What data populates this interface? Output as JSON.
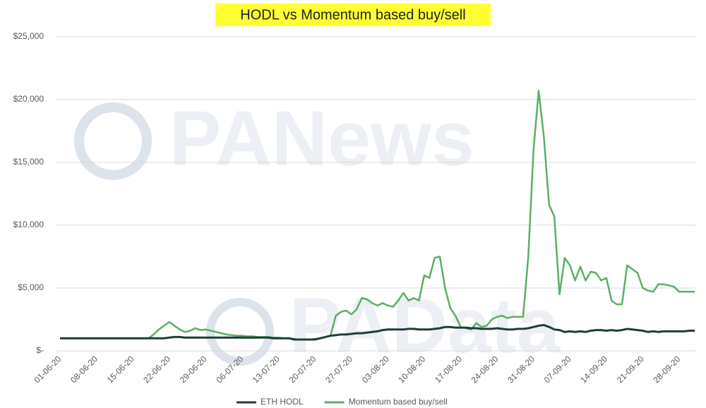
{
  "chart_data": {
    "type": "line",
    "title": "HODL vs Momentum based buy/sell",
    "watermarks": [
      "PANews",
      "PAData"
    ],
    "categories": [
      "01-06-20",
      null,
      null,
      null,
      null,
      null,
      null,
      "08-06-20",
      null,
      null,
      null,
      null,
      null,
      null,
      "15-06-20",
      null,
      null,
      null,
      null,
      null,
      null,
      "22-06-20",
      null,
      null,
      null,
      null,
      null,
      null,
      "29-06-20",
      null,
      null,
      null,
      null,
      null,
      null,
      "06-07-20",
      null,
      null,
      null,
      null,
      null,
      null,
      "13-07-20",
      null,
      null,
      null,
      null,
      null,
      null,
      "20-07-20",
      null,
      null,
      null,
      null,
      null,
      null,
      "27-07-20",
      null,
      null,
      null,
      null,
      null,
      null,
      "03-08-20",
      null,
      null,
      null,
      null,
      null,
      null,
      "10-08-20",
      null,
      null,
      null,
      null,
      null,
      null,
      "17-08-20",
      null,
      null,
      null,
      null,
      null,
      null,
      "24-08-20",
      null,
      null,
      null,
      null,
      null,
      null,
      "31-08-20",
      null,
      null,
      null,
      null,
      null,
      null,
      "07-09-20",
      null,
      null,
      null,
      null,
      null,
      null,
      "14-09-20",
      null,
      null,
      null,
      null,
      null,
      null,
      "21-09-20",
      null,
      null,
      null,
      null,
      null,
      null,
      "28-09-20",
      null,
      null,
      null
    ],
    "series": [
      {
        "name": "ETH HODL",
        "color": "#1f3d3b",
        "values": [
          1000,
          1000,
          1000,
          1000,
          1000,
          1000,
          1000,
          1000,
          1000,
          1000,
          1000,
          1000,
          1000,
          1000,
          1000,
          1000,
          1000,
          1000,
          1000,
          1000,
          1000,
          1050,
          1100,
          1100,
          1050,
          1050,
          1050,
          1050,
          1050,
          1050,
          1050,
          1050,
          1050,
          1050,
          1050,
          1050,
          1050,
          1050,
          1050,
          1050,
          1050,
          1000,
          1000,
          1000,
          1000,
          900,
          900,
          900,
          900,
          900,
          1000,
          1100,
          1200,
          1250,
          1300,
          1300,
          1350,
          1400,
          1400,
          1450,
          1500,
          1550,
          1650,
          1700,
          1700,
          1700,
          1700,
          1750,
          1750,
          1700,
          1700,
          1700,
          1750,
          1800,
          1900,
          1900,
          1850,
          1850,
          1850,
          1800,
          1800,
          1750,
          1750,
          1750,
          1800,
          1750,
          1700,
          1700,
          1750,
          1750,
          1800,
          1900,
          2000,
          2050,
          1900,
          1700,
          1650,
          1500,
          1550,
          1500,
          1550,
          1500,
          1600,
          1650,
          1650,
          1600,
          1650,
          1600,
          1650,
          1750,
          1700,
          1650,
          1600,
          1500,
          1550,
          1500,
          1550,
          1550,
          1550,
          1550,
          1550,
          1600,
          1600
        ]
      },
      {
        "name": "Momentum based buy/sell",
        "color": "#5cae64",
        "values": [
          1000,
          1000,
          1000,
          1000,
          1000,
          1000,
          1000,
          1000,
          1000,
          1000,
          1000,
          1000,
          1000,
          1000,
          1000,
          1000,
          1000,
          1000,
          1300,
          1700,
          2000,
          2300,
          2000,
          1700,
          1500,
          1600,
          1800,
          1650,
          1700,
          1600,
          1500,
          1400,
          1300,
          1250,
          1200,
          1200,
          1150,
          1150,
          1100,
          1100,
          1100,
          1050,
          1050,
          1000,
          1000,
          950,
          900,
          900,
          900,
          950,
          1000,
          1100,
          1200,
          2800,
          3100,
          3200,
          2900,
          3300,
          4200,
          4100,
          3800,
          3600,
          3800,
          3600,
          3500,
          4000,
          4600,
          4000,
          4200,
          4000,
          6000,
          5800,
          7400,
          7500,
          5000,
          3400,
          2800,
          1900,
          1800,
          1700,
          2200,
          1900,
          2000,
          2500,
          2700,
          2800,
          2600,
          2700,
          2700,
          2700,
          7500,
          16000,
          20700,
          17000,
          11600,
          10700,
          4500,
          7400,
          6800,
          5600,
          6700,
          5600,
          6300,
          6200,
          5600,
          5800,
          4000,
          3700,
          3700,
          6800,
          6500,
          6200,
          5000,
          4800,
          4700,
          5300,
          5300,
          5200,
          5100,
          4700,
          4700,
          4700,
          4700
        ]
      }
    ],
    "ylim": [
      0,
      25000
    ],
    "yticks": [
      {
        "value": 0,
        "label": "$-"
      },
      {
        "value": 5000,
        "label": "$5,000"
      },
      {
        "value": 10000,
        "label": "$10,000"
      },
      {
        "value": 15000,
        "label": "$15,000"
      },
      {
        "value": 20000,
        "label": "$20,000"
      },
      {
        "value": 25000,
        "label": "$25,000"
      }
    ],
    "grid": true
  }
}
